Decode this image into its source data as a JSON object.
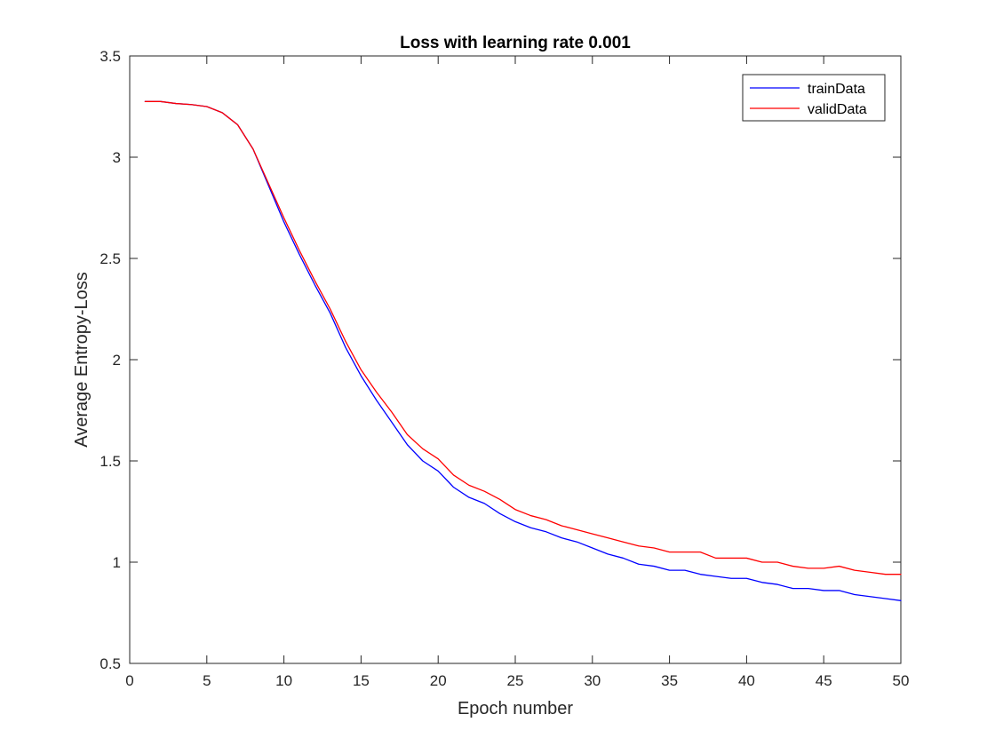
{
  "chart_data": {
    "type": "line",
    "title": "Loss with learning rate 0.001",
    "xlabel": "Epoch number",
    "ylabel": "Average Entropy-Loss",
    "xlim": [
      0,
      50
    ],
    "ylim": [
      0.5,
      3.5
    ],
    "xticks": [
      0,
      5,
      10,
      15,
      20,
      25,
      30,
      35,
      40,
      45,
      50
    ],
    "yticks": [
      0.5,
      1,
      1.5,
      2,
      2.5,
      3,
      3.5
    ],
    "xtick_labels": [
      "0",
      "5",
      "10",
      "15",
      "20",
      "25",
      "30",
      "35",
      "40",
      "45",
      "50"
    ],
    "ytick_labels": [
      "0.5",
      "1",
      "1.5",
      "2",
      "2.5",
      "3",
      "3.5"
    ],
    "grid": false,
    "legend_position": "top-right",
    "x": [
      1,
      2,
      3,
      4,
      5,
      6,
      7,
      8,
      9,
      10,
      11,
      12,
      13,
      14,
      15,
      16,
      17,
      18,
      19,
      20,
      21,
      22,
      23,
      24,
      25,
      26,
      27,
      28,
      29,
      30,
      31,
      32,
      33,
      34,
      35,
      36,
      37,
      38,
      39,
      40,
      41,
      42,
      43,
      44,
      45,
      46,
      47,
      48,
      49,
      50
    ],
    "series": [
      {
        "name": "trainData",
        "color": "#0000ff",
        "values": [
          3.275,
          3.275,
          3.265,
          3.26,
          3.25,
          3.22,
          3.16,
          3.04,
          2.86,
          2.68,
          2.52,
          2.37,
          2.23,
          2.06,
          1.92,
          1.8,
          1.69,
          1.58,
          1.5,
          1.45,
          1.37,
          1.32,
          1.29,
          1.24,
          1.2,
          1.17,
          1.15,
          1.12,
          1.1,
          1.07,
          1.04,
          1.02,
          0.99,
          0.98,
          0.96,
          0.96,
          0.94,
          0.93,
          0.92,
          0.92,
          0.9,
          0.89,
          0.87,
          0.87,
          0.86,
          0.86,
          0.84,
          0.83,
          0.82,
          0.81
        ]
      },
      {
        "name": "validData",
        "color": "#ff0000",
        "values": [
          3.275,
          3.275,
          3.265,
          3.26,
          3.25,
          3.22,
          3.16,
          3.04,
          2.87,
          2.7,
          2.54,
          2.39,
          2.25,
          2.09,
          1.95,
          1.84,
          1.74,
          1.63,
          1.56,
          1.51,
          1.43,
          1.38,
          1.35,
          1.31,
          1.26,
          1.23,
          1.21,
          1.18,
          1.16,
          1.14,
          1.12,
          1.1,
          1.08,
          1.07,
          1.05,
          1.05,
          1.05,
          1.02,
          1.02,
          1.02,
          1.0,
          1.0,
          0.98,
          0.97,
          0.97,
          0.98,
          0.96,
          0.95,
          0.94,
          0.94
        ]
      }
    ]
  }
}
